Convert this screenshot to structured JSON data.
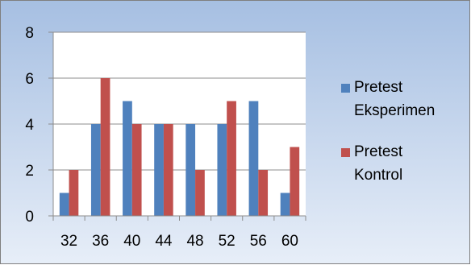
{
  "chart_data": {
    "type": "bar",
    "categories": [
      "32",
      "36",
      "40",
      "44",
      "48",
      "52",
      "56",
      "60"
    ],
    "series": [
      {
        "name": "Pretest Eksperimen",
        "legend_lines": [
          "Pretest",
          "Eksperimen"
        ],
        "color": "#4f81bd",
        "values": [
          1,
          4,
          5,
          4,
          4,
          4,
          5,
          1
        ]
      },
      {
        "name": "Pretest Kontrol",
        "legend_lines": [
          "Pretest",
          "Kontrol"
        ],
        "color": "#c0504d",
        "values": [
          2,
          6,
          4,
          4,
          2,
          5,
          2,
          3
        ]
      }
    ],
    "ylim": [
      0,
      8
    ],
    "yticks": [
      "0",
      "2",
      "4",
      "6",
      "8"
    ],
    "grid": true,
    "legend_position": "right",
    "title": "",
    "xlabel": "",
    "ylabel": ""
  },
  "colors": {
    "background_top": "#a6bfe2",
    "background_bottom": "#e7eef8",
    "plot_area": "#ffffff",
    "gridline": "#8c8c8c",
    "border": "#7f7f7f"
  }
}
